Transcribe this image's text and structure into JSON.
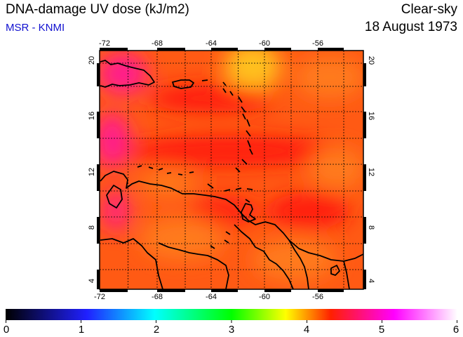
{
  "header": {
    "title": "DNA-damage UV dose (kJ/m2)",
    "source": "MSR - KNMI",
    "condition": "Clear-sky",
    "date": "18 August 1973"
  },
  "map": {
    "lon_ticks": [
      "-72",
      "-68",
      "-64",
      "-60",
      "-56"
    ],
    "lat_ticks": [
      "4",
      "8",
      "12",
      "16",
      "20"
    ]
  },
  "colorbar": {
    "ticks": [
      "0",
      "1",
      "2",
      "3",
      "4",
      "5",
      "6"
    ],
    "colors": [
      "#000000",
      "#2020ff",
      "#00ffff",
      "#00ff00",
      "#ffff00",
      "#ff2000",
      "#ff00ff",
      "#ffffff"
    ]
  },
  "field": {
    "base_color": "#ff5a14",
    "light_orange": "#ff7a1a",
    "red": "#ff1a10",
    "yellow": "#ffd21e",
    "magenta": "#ff1a8c",
    "coast_color": "#000000"
  }
}
